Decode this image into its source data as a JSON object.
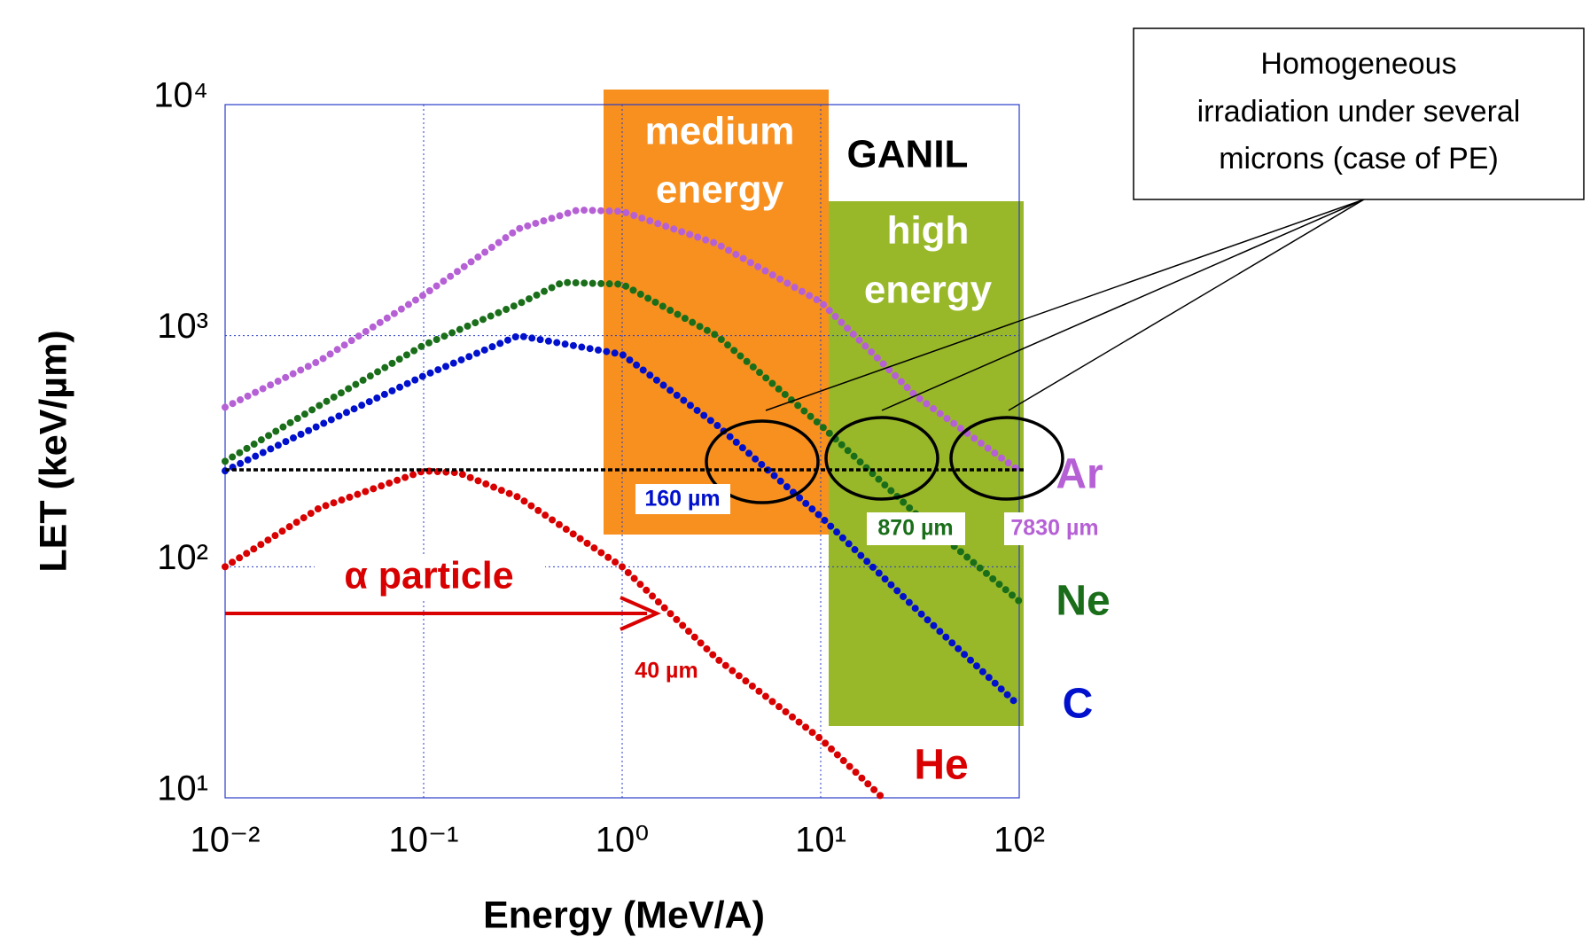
{
  "chart_data": {
    "type": "line",
    "x_label": "Energy (MeV/A)",
    "y_label": "LET  (keV/µm)",
    "log_x": true,
    "log_y": true,
    "grid": true,
    "xlim": [
      0.01,
      100
    ],
    "ylim": [
      10,
      10000
    ],
    "xticks": [
      {
        "value": 0.01,
        "label": "10⁻²"
      },
      {
        "value": 0.1,
        "label": "10⁻¹"
      },
      {
        "value": 1,
        "label": "10⁰"
      },
      {
        "value": 10,
        "label": "10¹"
      },
      {
        "value": 100,
        "label": "10²"
      }
    ],
    "yticks": [
      {
        "value": 10,
        "label": "10¹"
      },
      {
        "value": 100,
        "label": "10²"
      },
      {
        "value": 1000,
        "label": "10³"
      },
      {
        "value": 10000,
        "label": "10⁴"
      }
    ],
    "series": [
      {
        "name": "Ar",
        "color": "#b660d6",
        "x": [
          0.01,
          0.03,
          0.1,
          0.3,
          0.6,
          1,
          3,
          10,
          30,
          100
        ],
        "values": [
          490,
          780,
          1500,
          2900,
          3500,
          3450,
          2500,
          1400,
          550,
          260
        ]
      },
      {
        "name": "Ne",
        "color": "#1a6e1a",
        "x": [
          0.01,
          0.03,
          0.1,
          0.3,
          0.5,
          1,
          3,
          10,
          30,
          100
        ],
        "values": [
          286,
          500,
          910,
          1370,
          1700,
          1670,
          1000,
          410,
          170,
          71
        ]
      },
      {
        "name": "C",
        "color": "#0010cc",
        "x": [
          0.01,
          0.03,
          0.1,
          0.3,
          1,
          3,
          10,
          30,
          100
        ],
        "values": [
          260,
          410,
          670,
          1000,
          830,
          410,
          165,
          66,
          25
        ]
      },
      {
        "name": "He",
        "color": "#d80000",
        "x": [
          0.01,
          0.03,
          0.1,
          0.15,
          0.3,
          1,
          3,
          10,
          20
        ],
        "values": [
          100,
          180,
          260,
          255,
          200,
          100,
          40,
          18,
          10.2
        ]
      }
    ],
    "annotations": {
      "medium": [
        "medium",
        "energy"
      ],
      "facility": "GANIL",
      "high": [
        "high",
        "energy"
      ],
      "depth_c": "160 µm",
      "depth_ne": "870 µm",
      "depth_ar": "7830 µm",
      "depth_he": "40 µm",
      "alpha": "α particle",
      "callout": [
        "Homogeneous",
        "irradiation under several",
        "microns (case of PE)"
      ]
    }
  }
}
